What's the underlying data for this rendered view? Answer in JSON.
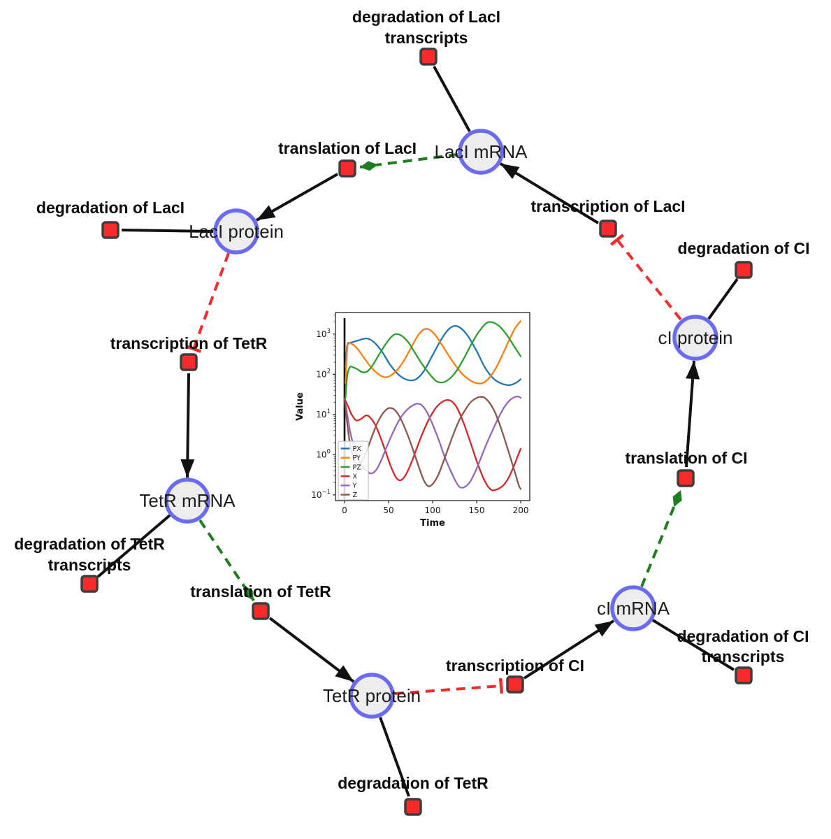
{
  "diagram": {
    "species": [
      {
        "label": "LacI mRNA"
      },
      {
        "label": "LacI protein"
      },
      {
        "label": "cI protein"
      },
      {
        "label": "TetR mRNA"
      },
      {
        "label": "cI mRNA"
      },
      {
        "label": "TetR protein"
      }
    ],
    "reactions": [
      {
        "lines": [
          "degradation of LacI",
          "transcripts"
        ]
      },
      {
        "lines": [
          "translation of LacI"
        ]
      },
      {
        "lines": [
          "transcription of LacI"
        ]
      },
      {
        "lines": [
          "degradation of LacI"
        ]
      },
      {
        "lines": [
          "degradation of CI"
        ]
      },
      {
        "lines": [
          "transcription of TetR"
        ]
      },
      {
        "lines": [
          "translation of CI"
        ]
      },
      {
        "lines": [
          "degradation of TetR",
          "transcripts"
        ]
      },
      {
        "lines": [
          "translation of TetR"
        ]
      },
      {
        "lines": [
          "degradation of CI",
          "transcripts"
        ]
      },
      {
        "lines": [
          "transcription of CI"
        ]
      },
      {
        "lines": [
          "degradation of TetR"
        ]
      }
    ],
    "edges": [
      {
        "from": "LacI mRNA",
        "to": "degradation of LacI transcripts",
        "type": "consumption"
      },
      {
        "from": "LacI mRNA",
        "to": "translation of LacI",
        "type": "modifier"
      },
      {
        "from": "translation of LacI",
        "to": "LacI protein",
        "type": "production"
      },
      {
        "from": "LacI protein",
        "to": "degradation of LacI",
        "type": "consumption"
      },
      {
        "from": "LacI protein",
        "to": "transcription of TetR",
        "type": "inhibition"
      },
      {
        "from": "transcription of TetR",
        "to": "TetR mRNA",
        "type": "production"
      },
      {
        "from": "TetR mRNA",
        "to": "degradation of TetR transcripts",
        "type": "consumption"
      },
      {
        "from": "TetR mRNA",
        "to": "translation of TetR",
        "type": "modifier"
      },
      {
        "from": "translation of TetR",
        "to": "TetR protein",
        "type": "production"
      },
      {
        "from": "TetR protein",
        "to": "degradation of TetR",
        "type": "consumption"
      },
      {
        "from": "TetR protein",
        "to": "transcription of CI",
        "type": "inhibition"
      },
      {
        "from": "transcription of CI",
        "to": "cI mRNA",
        "type": "production"
      },
      {
        "from": "cI mRNA",
        "to": "degradation of CI transcripts",
        "type": "consumption"
      },
      {
        "from": "cI mRNA",
        "to": "translation of CI",
        "type": "modifier"
      },
      {
        "from": "translation of CI",
        "to": "cI protein",
        "type": "production"
      },
      {
        "from": "cI protein",
        "to": "degradation of CI",
        "type": "consumption"
      },
      {
        "from": "cI protein",
        "to": "transcription of LacI",
        "type": "inhibition"
      },
      {
        "from": "transcription of LacI",
        "to": "LacI mRNA",
        "type": "production"
      }
    ],
    "colors": {
      "species_fill": "#ededed",
      "species_stroke": "#6b6bf2",
      "reaction_fill": "#fb2b2b",
      "reaction_stroke": "#3d3d3d",
      "production_edge": "#111111",
      "modifier_edge": "#1e7d1e",
      "inhibition_edge": "#f32b2b"
    }
  },
  "chart_data": {
    "type": "line",
    "title": "",
    "xlabel": "Time",
    "ylabel": "Value",
    "x_ticks": [
      0,
      50,
      100,
      150,
      200
    ],
    "y_scale": "log",
    "y_tick_exponents": [
      -1,
      0,
      1,
      2,
      3
    ],
    "xlim": [
      -10.3,
      210.3
    ],
    "ylim": [
      0.072,
      3440
    ],
    "grid": false,
    "legend_position": "lower left",
    "vline": {
      "x": 0,
      "color": "#000000"
    },
    "series": [
      {
        "name": "PX",
        "color": "#1f77b4",
        "points": [
          [
            1,
            150
          ],
          [
            3,
            520
          ],
          [
            6,
            600
          ],
          [
            10,
            640
          ],
          [
            16,
            700
          ],
          [
            25,
            780
          ],
          [
            33,
            640
          ],
          [
            42,
            380
          ],
          [
            52,
            170
          ],
          [
            62,
            95
          ],
          [
            72,
            72
          ],
          [
            81,
            75
          ],
          [
            90,
            120
          ],
          [
            100,
            300
          ],
          [
            110,
            750
          ],
          [
            118,
            1300
          ],
          [
            125,
            1600
          ],
          [
            132,
            1400
          ],
          [
            140,
            900
          ],
          [
            150,
            380
          ],
          [
            160,
            140
          ],
          [
            170,
            75
          ],
          [
            180,
            57
          ],
          [
            188,
            54
          ],
          [
            195,
            62
          ],
          [
            200,
            75
          ]
        ]
      },
      {
        "name": "PY",
        "color": "#ff7f0e",
        "points": [
          [
            1,
            60
          ],
          [
            3,
            420
          ],
          [
            5,
            580
          ],
          [
            9,
            560
          ],
          [
            15,
            420
          ],
          [
            22,
            260
          ],
          [
            30,
            150
          ],
          [
            38,
            103
          ],
          [
            45,
            85
          ],
          [
            52,
            92
          ],
          [
            60,
            130
          ],
          [
            68,
            230
          ],
          [
            76,
            480
          ],
          [
            83,
            900
          ],
          [
            90,
            1300
          ],
          [
            96,
            1300
          ],
          [
            103,
            950
          ],
          [
            110,
            560
          ],
          [
            118,
            300
          ],
          [
            126,
            165
          ],
          [
            134,
            100
          ],
          [
            142,
            72
          ],
          [
            150,
            60
          ],
          [
            158,
            62
          ],
          [
            165,
            85
          ],
          [
            172,
            145
          ],
          [
            180,
            330
          ],
          [
            188,
            800
          ],
          [
            194,
            1450
          ],
          [
            200,
            2100
          ]
        ]
      },
      {
        "name": "PZ",
        "color": "#2ca02c",
        "points": [
          [
            1,
            25
          ],
          [
            3,
            90
          ],
          [
            6,
            150
          ],
          [
            10,
            148
          ],
          [
            15,
            132
          ],
          [
            20,
            113
          ],
          [
            26,
            118
          ],
          [
            32,
            170
          ],
          [
            40,
            330
          ],
          [
            48,
            620
          ],
          [
            55,
            930
          ],
          [
            60,
            1000
          ],
          [
            66,
            870
          ],
          [
            73,
            600
          ],
          [
            80,
            340
          ],
          [
            88,
            180
          ],
          [
            96,
            105
          ],
          [
            104,
            68
          ],
          [
            112,
            63
          ],
          [
            120,
            80
          ],
          [
            128,
            130
          ],
          [
            136,
            260
          ],
          [
            144,
            560
          ],
          [
            152,
            1100
          ],
          [
            160,
            1800
          ],
          [
            165,
            2000
          ],
          [
            171,
            1850
          ],
          [
            178,
            1400
          ],
          [
            185,
            900
          ],
          [
            192,
            520
          ],
          [
            200,
            280
          ]
        ]
      },
      {
        "name": "X",
        "color": "#d62728",
        "points": [
          [
            0,
            25
          ],
          [
            4,
            16
          ],
          [
            8,
            10
          ],
          [
            13,
            7.2
          ],
          [
            18,
            7.6
          ],
          [
            24,
            9.4
          ],
          [
            28,
            8.8
          ],
          [
            34,
            6
          ],
          [
            40,
            3
          ],
          [
            46,
            1.3
          ],
          [
            52,
            0.55
          ],
          [
            58,
            0.28
          ],
          [
            63,
            0.23
          ],
          [
            68,
            0.28
          ],
          [
            74,
            0.5
          ],
          [
            80,
            1.1
          ],
          [
            87,
            2.8
          ],
          [
            95,
            7
          ],
          [
            103,
            14
          ],
          [
            110,
            20
          ],
          [
            117,
            23
          ],
          [
            123,
            20
          ],
          [
            129,
            13
          ],
          [
            136,
            5.5
          ],
          [
            143,
            2
          ],
          [
            150,
            0.7
          ],
          [
            157,
            0.28
          ],
          [
            163,
            0.16
          ],
          [
            168,
            0.13
          ],
          [
            174,
            0.14
          ],
          [
            180,
            0.17
          ],
          [
            186,
            0.26
          ],
          [
            192,
            0.5
          ],
          [
            196,
            0.85
          ],
          [
            200,
            1.4
          ]
        ]
      },
      {
        "name": "Y",
        "color": "#9467bd",
        "points": [
          [
            0,
            25
          ],
          [
            3,
            10
          ],
          [
            7,
            3.2
          ],
          [
            12,
            1.3
          ],
          [
            18,
            0.62
          ],
          [
            24,
            0.42
          ],
          [
            30,
            0.34
          ],
          [
            36,
            0.42
          ],
          [
            42,
            0.75
          ],
          [
            48,
            1.6
          ],
          [
            54,
            3.2
          ],
          [
            60,
            6
          ],
          [
            67,
            10.5
          ],
          [
            74,
            15
          ],
          [
            80,
            18
          ],
          [
            84,
            18.5
          ],
          [
            89,
            16
          ],
          [
            95,
            10
          ],
          [
            101,
            5
          ],
          [
            108,
            2
          ],
          [
            114,
            0.85
          ],
          [
            120,
            0.42
          ],
          [
            126,
            0.22
          ],
          [
            131,
            0.155
          ],
          [
            137,
            0.16
          ],
          [
            143,
            0.22
          ],
          [
            149,
            0.4
          ],
          [
            155,
            0.85
          ],
          [
            161,
            1.8
          ],
          [
            168,
            4
          ],
          [
            175,
            8.5
          ],
          [
            182,
            16
          ],
          [
            188,
            23
          ],
          [
            193,
            27
          ],
          [
            197,
            28
          ],
          [
            200,
            26
          ]
        ]
      },
      {
        "name": "Z",
        "color": "#8c564b",
        "points": [
          [
            0,
            25
          ],
          [
            3,
            6
          ],
          [
            6,
            2
          ],
          [
            10,
            0.85
          ],
          [
            14,
            0.58
          ],
          [
            18,
            0.62
          ],
          [
            22,
            0.85
          ],
          [
            27,
            1.6
          ],
          [
            32,
            3.2
          ],
          [
            37,
            6
          ],
          [
            42,
            9.5
          ],
          [
            47,
            13
          ],
          [
            51,
            14.5
          ],
          [
            56,
            13.5
          ],
          [
            61,
            10
          ],
          [
            67,
            5.5
          ],
          [
            73,
            2.6
          ],
          [
            79,
            1.1
          ],
          [
            85,
            0.45
          ],
          [
            90,
            0.23
          ],
          [
            95,
            0.165
          ],
          [
            100,
            0.185
          ],
          [
            106,
            0.3
          ],
          [
            112,
            0.65
          ],
          [
            118,
            1.5
          ],
          [
            124,
            3.4
          ],
          [
            130,
            7
          ],
          [
            137,
            13
          ],
          [
            143,
            20
          ],
          [
            149,
            25
          ],
          [
            154,
            27.5
          ],
          [
            159,
            26
          ],
          [
            165,
            19
          ],
          [
            171,
            11
          ],
          [
            177,
            5
          ],
          [
            183,
            2
          ],
          [
            189,
            0.75
          ],
          [
            194,
            0.33
          ],
          [
            198,
            0.17
          ],
          [
            200,
            0.14
          ]
        ]
      }
    ]
  }
}
